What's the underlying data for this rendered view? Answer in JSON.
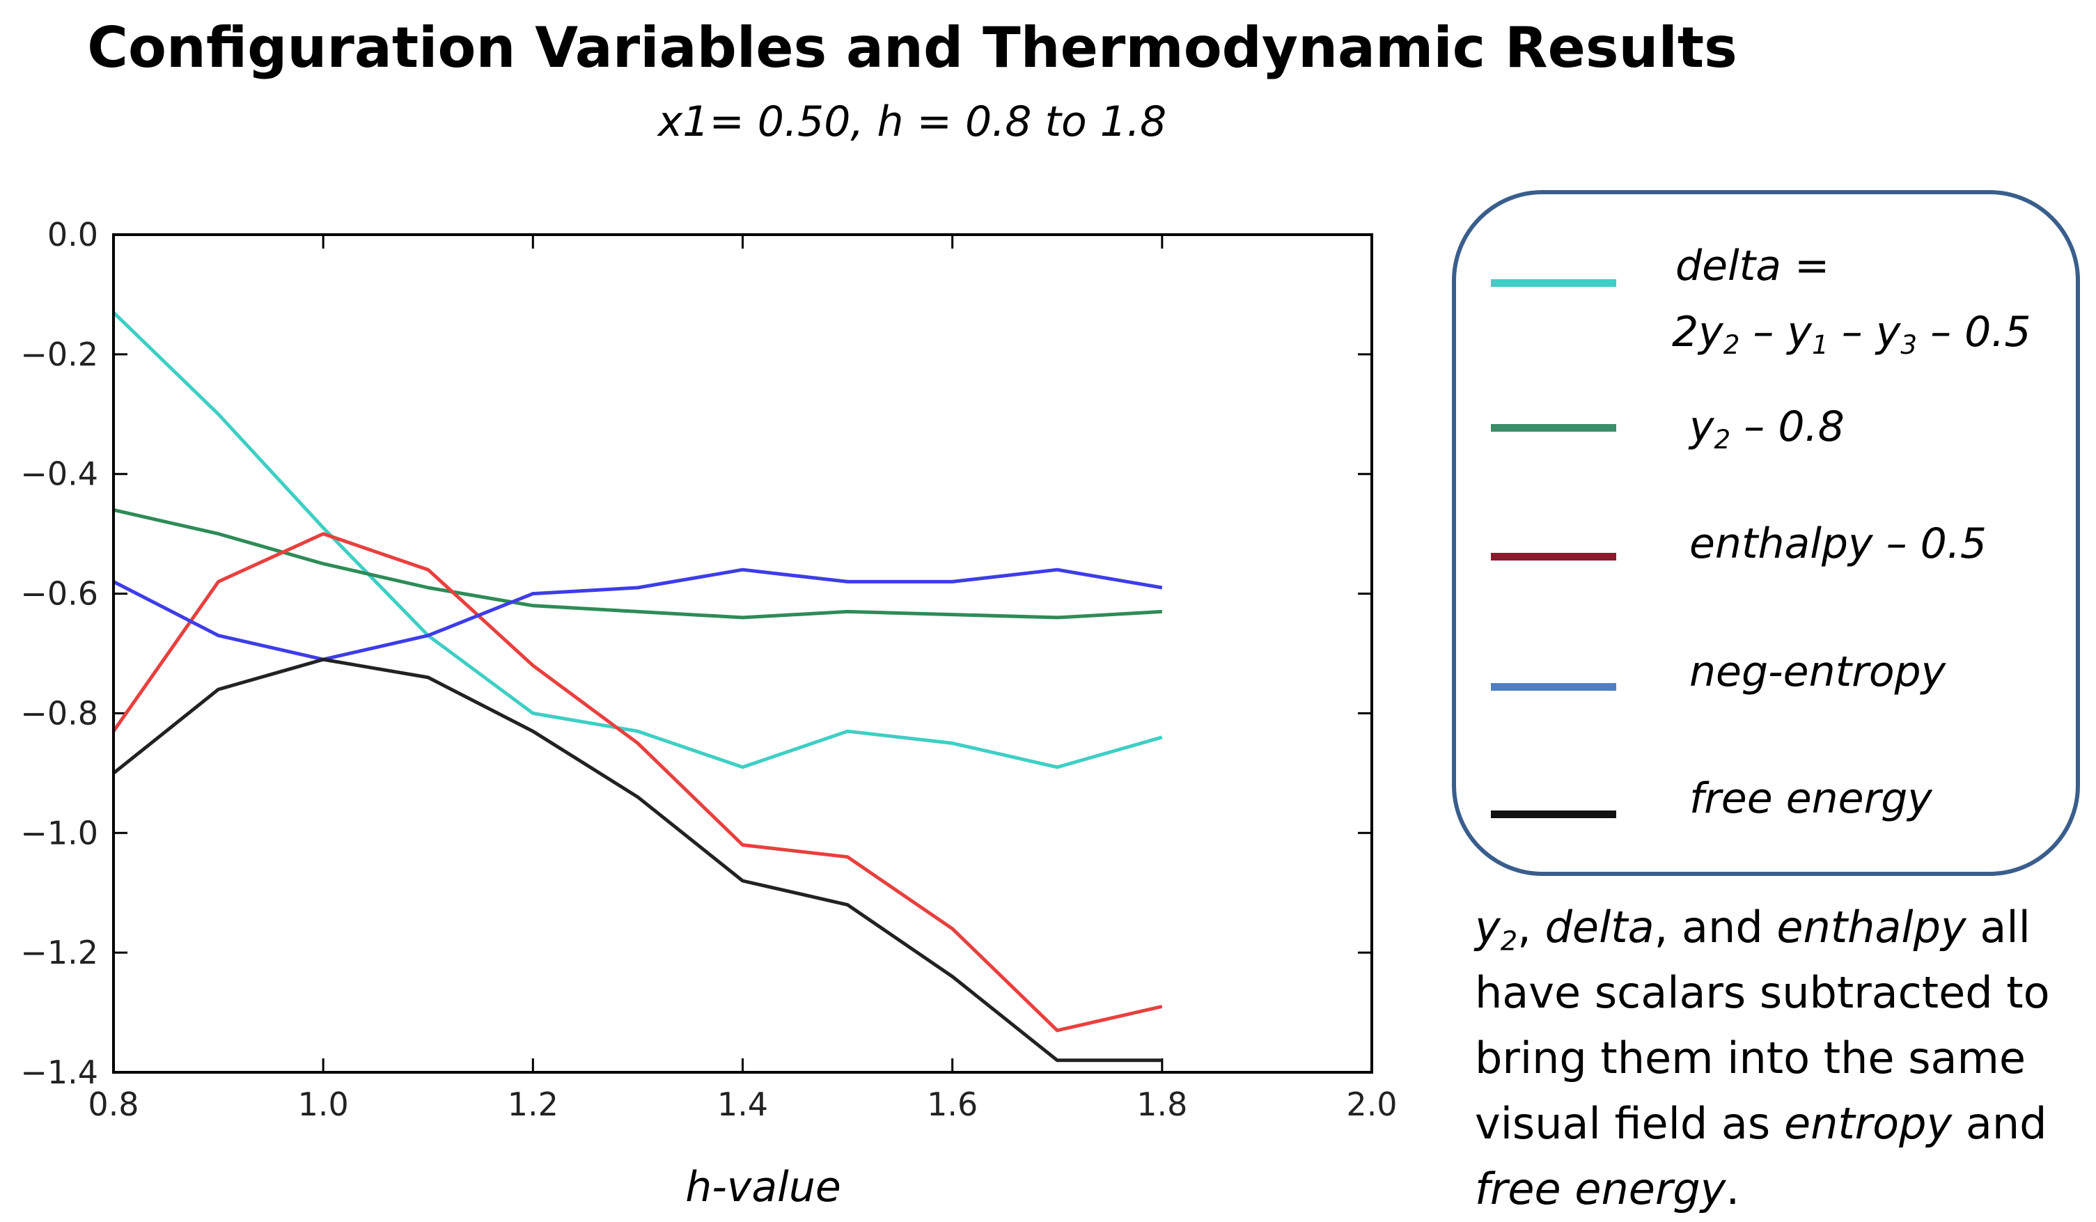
{
  "chart_data": {
    "type": "line",
    "title": "Configuration Variables and Thermodynamic Results",
    "subtitle": "x1= 0.50, h = 0.8 to 1.8",
    "xlabel": "h-value",
    "ylabel": "",
    "xlim": [
      0.8,
      2.0
    ],
    "ylim": [
      -1.4,
      0.0
    ],
    "x_ticks": [
      "0.8",
      "1.0",
      "1.2",
      "1.4",
      "1.6",
      "1.8",
      "2.0"
    ],
    "y_ticks": [
      "0.0",
      "−0.2",
      "−0.4",
      "−0.6",
      "−0.8",
      "−1.0",
      "−1.2",
      "−1.4"
    ],
    "x": [
      0.8,
      0.9,
      1.0,
      1.1,
      1.2,
      1.3,
      1.4,
      1.5,
      1.6,
      1.7,
      1.8
    ],
    "series": [
      {
        "name": "delta",
        "color": "#3ecfc4",
        "values": [
          -0.13,
          -0.3,
          -0.49,
          -0.67,
          -0.8,
          -0.83,
          -0.89,
          -0.83,
          -0.85,
          -0.89,
          -0.84
        ]
      },
      {
        "name": "y2 − 0.8",
        "color": "#2e8b57",
        "values": [
          -0.46,
          -0.5,
          -0.55,
          -0.59,
          -0.62,
          -0.63,
          -0.64,
          -0.63,
          -0.635,
          -0.64,
          -0.63
        ]
      },
      {
        "name": "enthalpy − 0.5",
        "color": "#e8403e",
        "values": [
          -0.83,
          -0.58,
          -0.5,
          -0.56,
          -0.72,
          -0.85,
          -1.02,
          -1.04,
          -1.16,
          -1.33,
          -1.29
        ]
      },
      {
        "name": "neg-entropy",
        "color": "#3d3de8",
        "values": [
          -0.58,
          -0.67,
          -0.71,
          -0.67,
          -0.6,
          -0.59,
          -0.56,
          -0.58,
          -0.58,
          -0.56,
          -0.59
        ]
      },
      {
        "name": "free energy",
        "color": "#222222",
        "values": [
          -0.9,
          -0.76,
          -0.71,
          -0.74,
          -0.83,
          -0.94,
          -1.08,
          -1.12,
          -1.24,
          -1.38,
          -1.38
        ]
      }
    ]
  },
  "legend": {
    "items": [
      {
        "swatch_color": "#40cfc4",
        "label_line1": "delta =",
        "label_line2": "2y2 – y1 – y3 – 0.5"
      },
      {
        "swatch_color": "#3a8f68",
        "label": "y2 – 0.8"
      },
      {
        "swatch_color": "#8b1a2e",
        "label": "enthalpy – 0.5"
      },
      {
        "swatch_color": "#4f7fc2",
        "label": "neg-entropy"
      },
      {
        "swatch_color": "#111111",
        "label": "free energy"
      }
    ]
  },
  "note": "y2, delta, and enthalpy all have scalars subtracted to bring them into the same visual field as entropy and free energy."
}
